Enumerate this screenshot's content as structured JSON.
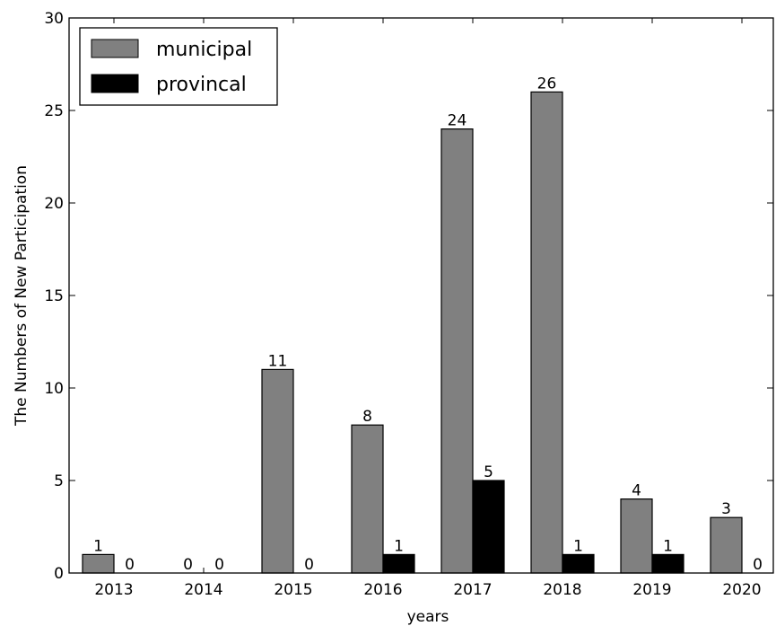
{
  "chart_data": {
    "type": "bar",
    "categories": [
      "2013",
      "2014",
      "2015",
      "2016",
      "2017",
      "2018",
      "2019",
      "2020"
    ],
    "series": [
      {
        "name": "municipal",
        "values": [
          1,
          0,
          11,
          8,
          24,
          26,
          4,
          3
        ],
        "color": "#808080"
      },
      {
        "name": "provincal",
        "values": [
          0,
          0,
          0,
          1,
          5,
          1,
          1,
          0
        ],
        "color": "#000000"
      }
    ],
    "xlabel": "years",
    "ylabel": "The Numbers of New Participation",
    "ylim": [
      0,
      30
    ],
    "yticks": [
      0,
      5,
      10,
      15,
      20,
      25,
      30
    ],
    "grid": false,
    "legend_position": "top-left",
    "show_value_labels": true
  }
}
